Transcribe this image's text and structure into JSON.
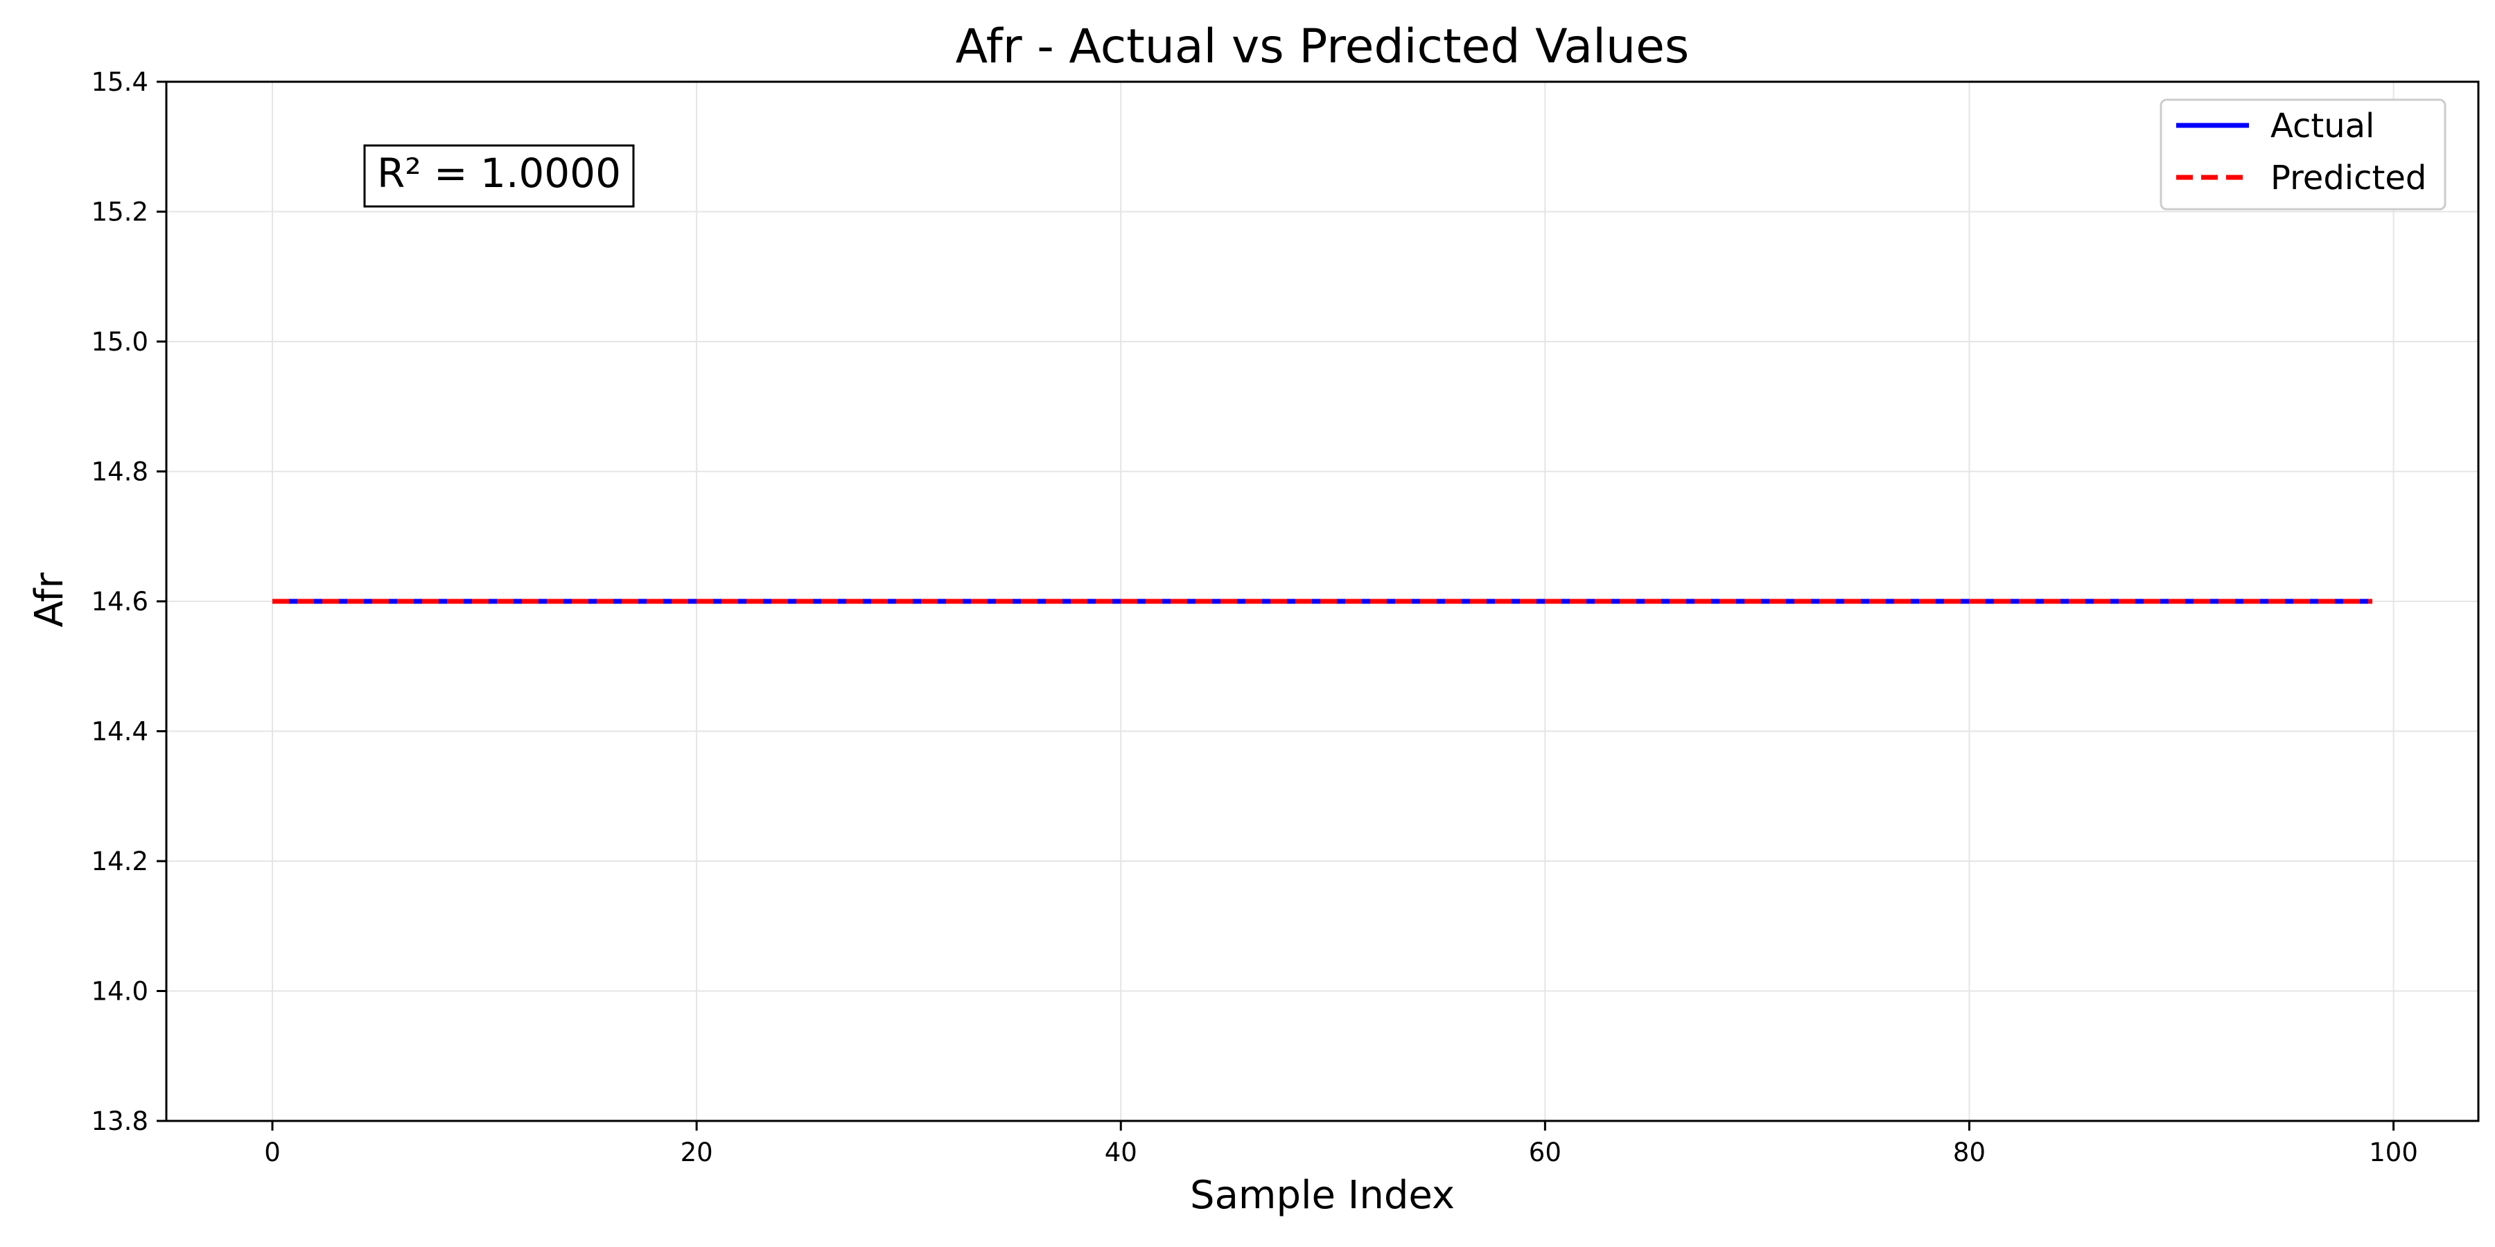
{
  "chart_data": {
    "type": "line",
    "title": "Afr - Actual vs Predicted Values",
    "xlabel": "Sample Index",
    "ylabel": "Afr",
    "xlim": [
      -5,
      104
    ],
    "ylim": [
      13.8,
      15.4
    ],
    "x_ticks": [
      0,
      20,
      40,
      60,
      80,
      100
    ],
    "x_tick_labels": [
      "0",
      "20",
      "40",
      "60",
      "80",
      "100"
    ],
    "y_ticks": [
      13.8,
      14.0,
      14.2,
      14.4,
      14.6,
      14.8,
      15.0,
      15.2,
      15.4
    ],
    "y_tick_labels": [
      "13.8",
      "14.0",
      "14.2",
      "14.4",
      "14.6",
      "14.8",
      "15.0",
      "15.2",
      "15.4"
    ],
    "grid": true,
    "legend_position": "top-right",
    "annotation": "R² = 1.0000",
    "series": [
      {
        "name": "Actual",
        "color": "#0000ff",
        "style": "solid",
        "x_start": 0,
        "x_end": 99,
        "value": 14.6
      },
      {
        "name": "Predicted",
        "color": "#ff0000",
        "style": "dashed",
        "x_start": 0,
        "x_end": 99,
        "value": 14.6
      }
    ]
  }
}
